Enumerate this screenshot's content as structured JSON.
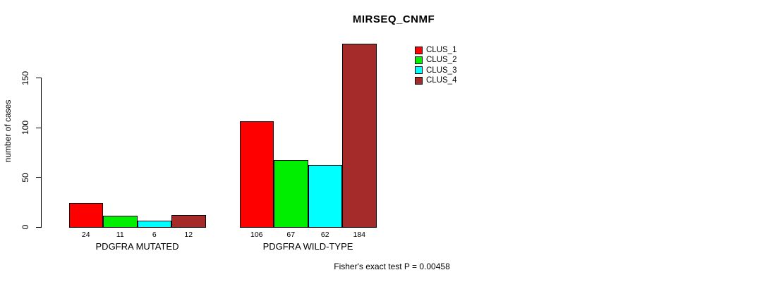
{
  "chart_data": {
    "type": "bar",
    "title": "MIRSEQ_CNMF",
    "ylabel": "number of cases",
    "caption": "Fisher's exact test P = 0.00458",
    "grid": false,
    "legend_position": "top-right",
    "yticks": [
      0,
      50,
      100,
      150
    ],
    "ylim": [
      0,
      190
    ],
    "categories": [
      "PDGFRA MUTATED",
      "PDGFRA WILD-TYPE"
    ],
    "series": [
      {
        "name": "CLUS_1",
        "color": "#ff0000",
        "values": [
          24,
          106
        ]
      },
      {
        "name": "CLUS_2",
        "color": "#00ee00",
        "values": [
          11,
          67
        ]
      },
      {
        "name": "CLUS_3",
        "color": "#00ffff",
        "values": [
          6,
          62
        ]
      },
      {
        "name": "CLUS_4",
        "color": "#a52a2a",
        "values": [
          12,
          184
        ]
      }
    ],
    "bar_value_labels": [
      [
        "24",
        "11",
        "6",
        "12"
      ],
      [
        "106",
        "67",
        "62",
        "184"
      ]
    ],
    "colors": {
      "foreground": "#000000",
      "background": "#ffffff"
    }
  }
}
